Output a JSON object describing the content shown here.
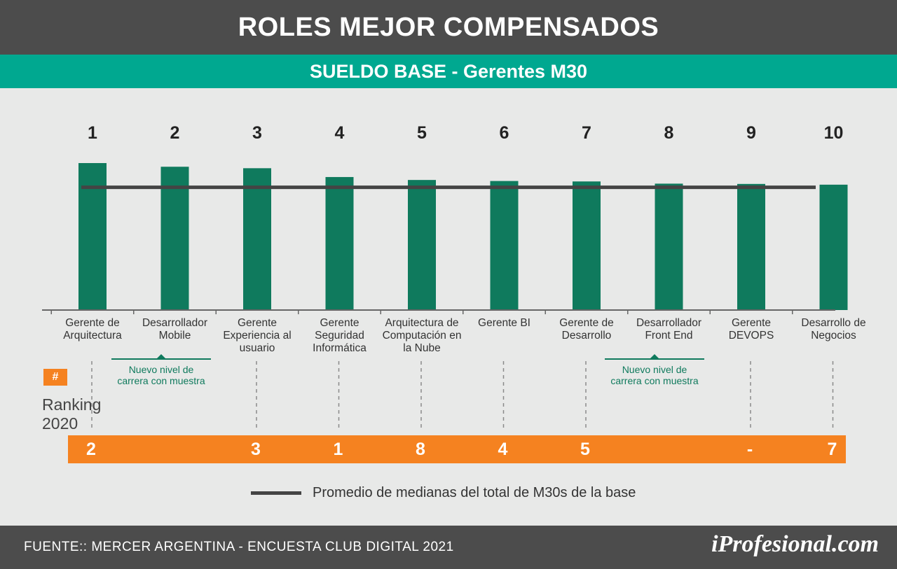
{
  "title": "ROLES MEJOR COMPENSADOS",
  "subtitle": "SUELDO BASE - Gerentes M30",
  "rank_badge": "#",
  "ranking_label_line1": "Ranking",
  "ranking_label_line2": "2020",
  "note_new_level_line1": "Nuevo nivel de",
  "note_new_level_line2": "carrera con muestra",
  "legend_label": "Promedio de medianas del total de M30s de la base",
  "footer": {
    "source": "FUENTE:: MERCER ARGENTINA - ENCUESTA CLUB DIGITAL 2021",
    "brand": "iProfesional.com"
  },
  "colors": {
    "bar": "#0f7a5d",
    "average_line": "#444444",
    "ranking_bar": "#f58220",
    "subtitle_bar": "#00a890",
    "title_bar": "#4c4c4c"
  },
  "chart_data": {
    "type": "bar",
    "ranks": [
      "1",
      "2",
      "3",
      "4",
      "5",
      "6",
      "7",
      "8",
      "9",
      "10"
    ],
    "categories": [
      [
        "Gerente de",
        "Arquitectura"
      ],
      [
        "Desarrollador",
        "Mobile"
      ],
      [
        "Gerente",
        "Experiencia al",
        "usuario"
      ],
      [
        "Gerente",
        "Seguridad",
        "Informática"
      ],
      [
        "Arquitectura de",
        "Computación en",
        "la Nube"
      ],
      [
        "Gerente BI"
      ],
      [
        "Gerente de",
        "Desarrollo"
      ],
      [
        "Desarrollador",
        "Front End"
      ],
      [
        "Gerente",
        "DEVOPS"
      ],
      [
        "Desarrollo de",
        "Negocios"
      ]
    ],
    "values": [
      100,
      97.5,
      96.5,
      90.5,
      88.5,
      87.8,
      87.5,
      86,
      85.8,
      85.3
    ],
    "average": 83.5,
    "ylim": [
      0,
      100
    ],
    "ranking_2020": [
      "2",
      "",
      "3",
      "1",
      "8",
      "4",
      "5",
      "",
      "-",
      "7"
    ],
    "new_level_roles": [
      "Desarrollador Mobile",
      "Desarrollador Front End"
    ]
  }
}
